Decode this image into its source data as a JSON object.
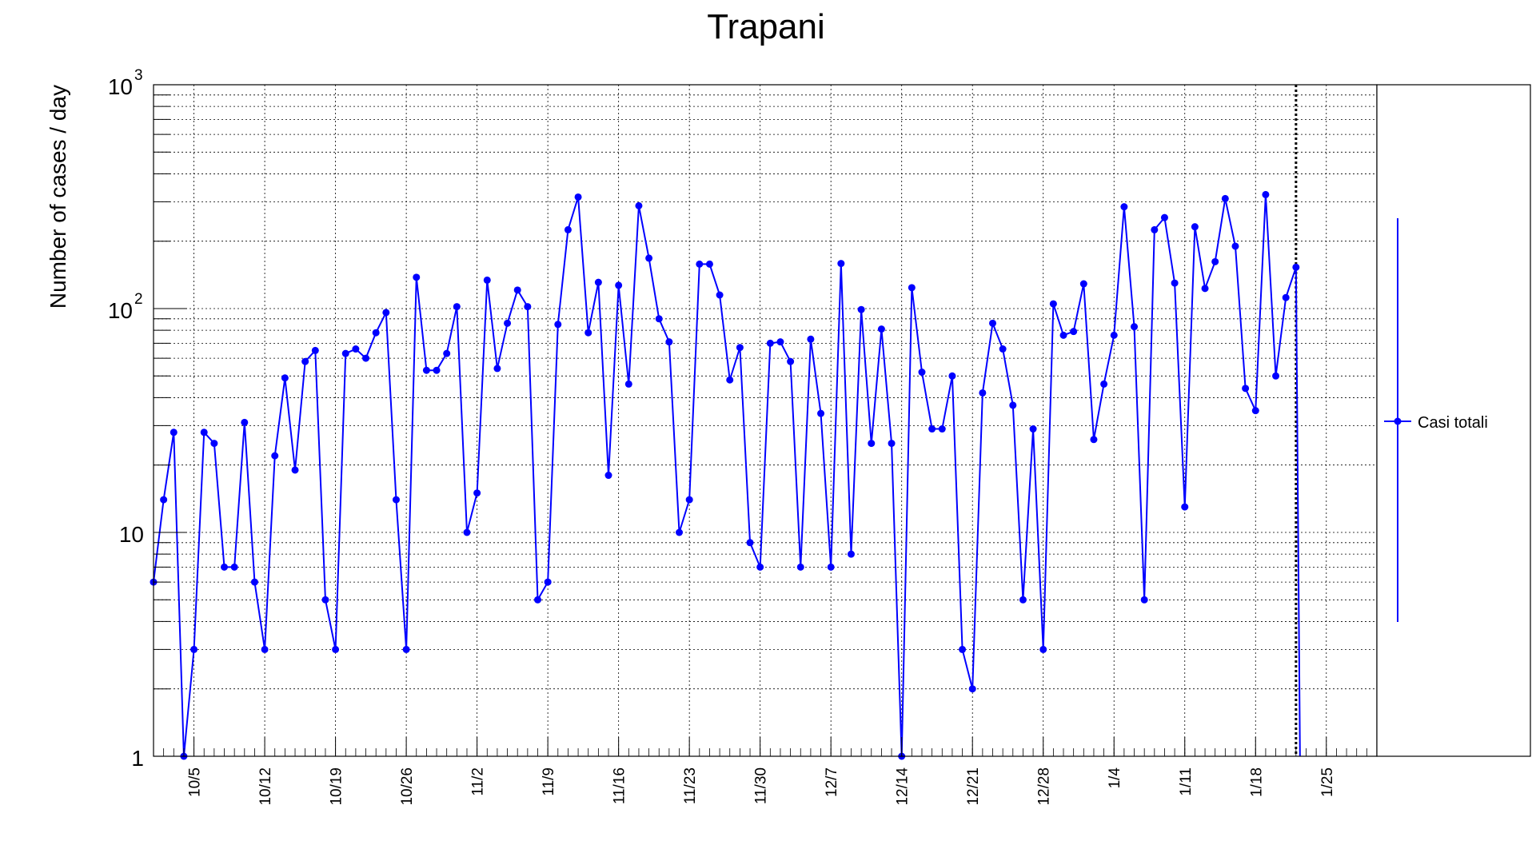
{
  "chart_data": {
    "type": "line",
    "title": "Trapani",
    "ylabel": "Number of cases / day",
    "xlabel": "",
    "y_scale": "log",
    "ylim": [
      1,
      1000
    ],
    "y_ticks": [
      {
        "value": 1,
        "label": "1"
      },
      {
        "value": 10,
        "label": "10"
      },
      {
        "value": 100,
        "label": "10",
        "exp": "2"
      },
      {
        "value": 1000,
        "label": "10",
        "exp": "3"
      }
    ],
    "x_ticks": [
      "10/5",
      "10/12",
      "10/19",
      "10/26",
      "11/2",
      "11/9",
      "11/16",
      "11/23",
      "11/30",
      "12/7",
      "12/14",
      "12/21",
      "12/28",
      "1/4",
      "1/11",
      "1/18",
      "1/25"
    ],
    "x_range": [
      "2020-10-01",
      "2021-01-30"
    ],
    "x_tick_dates": [
      "2020-10-05",
      "2020-10-12",
      "2020-10-19",
      "2020-10-26",
      "2020-11-02",
      "2020-11-09",
      "2020-11-16",
      "2020-11-23",
      "2020-11-30",
      "2020-12-07",
      "2020-12-14",
      "2020-12-21",
      "2020-12-28",
      "2021-01-04",
      "2021-01-11",
      "2021-01-18",
      "2021-01-25"
    ],
    "grid": true,
    "vertical_marker": "2021-01-22",
    "legend_position": "right",
    "series": [
      {
        "name": "Casi totali",
        "color": "#0000ff",
        "start_date": "2020-10-01",
        "values": [
          6,
          14,
          28,
          1,
          3,
          28,
          25,
          7,
          7,
          31,
          6,
          3,
          22,
          49,
          19,
          58,
          65,
          5,
          3,
          63,
          66,
          60,
          78,
          96,
          14,
          3,
          138,
          53,
          53,
          63,
          102,
          10,
          15,
          134,
          54,
          86,
          121,
          102,
          5,
          6,
          85,
          225,
          315,
          78,
          131,
          18,
          127,
          46,
          288,
          168,
          90,
          71,
          10,
          14,
          158,
          158,
          115,
          48,
          67,
          9,
          7,
          70,
          71,
          58,
          7,
          73,
          34,
          7,
          159,
          8,
          99,
          25,
          81,
          25,
          1,
          124,
          52,
          29,
          29,
          50,
          3,
          2,
          42,
          86,
          66,
          37,
          5,
          29,
          3,
          105,
          76,
          79,
          129,
          26,
          46,
          76,
          285,
          83,
          5,
          225,
          255,
          130,
          13,
          232,
          123,
          162,
          310,
          190,
          44,
          35,
          323,
          50,
          112,
          153
        ]
      }
    ]
  }
}
